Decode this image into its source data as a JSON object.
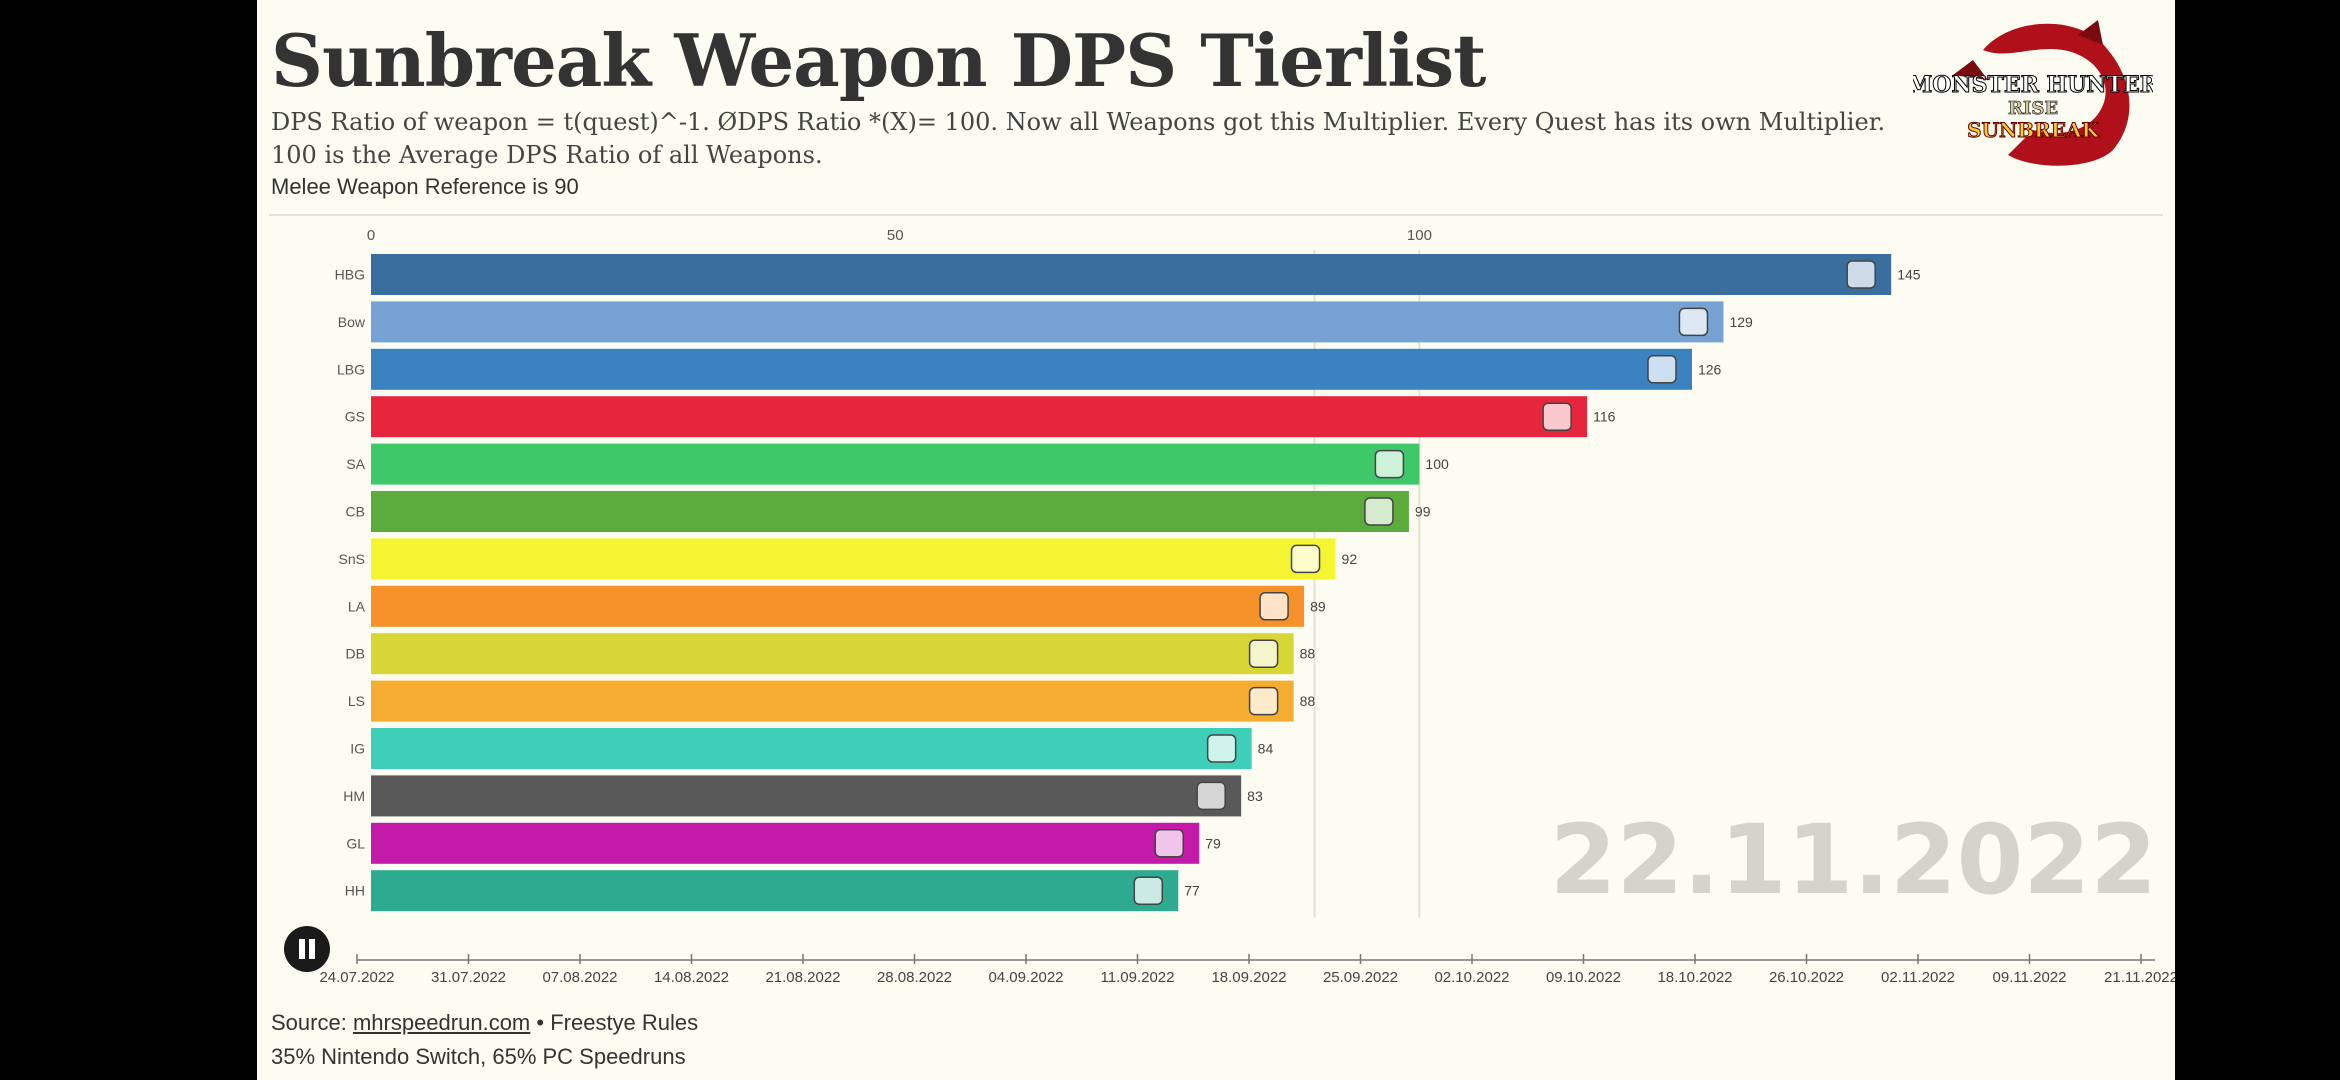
{
  "header": {
    "title": "Sunbreak Weapon DPS Tierlist",
    "subtitle": "DPS Ratio of weapon = t(quest)^-1. ØDPS Ratio *(X)= 100. Now all Weapons got this Multiplier. Every Quest has its own Multiplier. 100 is the Average DPS Ratio of all Weapons.",
    "caption": "Melee Weapon Reference is 90"
  },
  "logo": {
    "line1": "MONSTER HUNTER",
    "line2": "RISE",
    "line3": "SUNBREAK"
  },
  "footer": {
    "source_label": "Source:",
    "source_link": "mhrspeedrun.com",
    "source_rest": "• Freestye Rules",
    "note": "35% Nintendo Switch, 65% PC Speedruns"
  },
  "controls": {
    "pause_label": "Pause"
  },
  "colors": {
    "HBG": "#3a6e9e",
    "Bow": "#77a2d4",
    "LBG": "#3b82c0",
    "GS": "#e6263c",
    "SA": "#3ec86a",
    "CB": "#5bac3c",
    "SnS": "#f6f532",
    "LA": "#f7922a",
    "DB": "#d6d636",
    "LS": "#f4ad30",
    "IG": "#3ecfb8",
    "HM": "#595959",
    "GL": "#c21aa9",
    "HH": "#2daa8f"
  },
  "chart_data": {
    "type": "bar",
    "orientation": "horizontal",
    "title": "Sunbreak Weapon DPS Tierlist",
    "categories": [
      "HBG",
      "Bow",
      "LBG",
      "GS",
      "SA",
      "CB",
      "SnS",
      "LA",
      "DB",
      "LS",
      "IG",
      "HM",
      "GL",
      "HH"
    ],
    "values": [
      145,
      129,
      126,
      116,
      100,
      99,
      92,
      89,
      88,
      88,
      84,
      83,
      79,
      77
    ],
    "xlim": [
      0,
      157
    ],
    "x_ticks": [
      0,
      50,
      100
    ],
    "reference_lines": [
      90,
      100
    ],
    "date_label": "22.11.2022",
    "timeline": [
      "24.07.2022",
      "31.07.2022",
      "07.08.2022",
      "14.08.2022",
      "21.08.2022",
      "28.08.2022",
      "04.09.2022",
      "11.09.2022",
      "18.09.2022",
      "25.09.2022",
      "02.10.2022",
      "09.10.2022",
      "18.10.2022",
      "26.10.2022",
      "02.11.2022",
      "09.11.2022",
      "21.11.2022"
    ]
  }
}
